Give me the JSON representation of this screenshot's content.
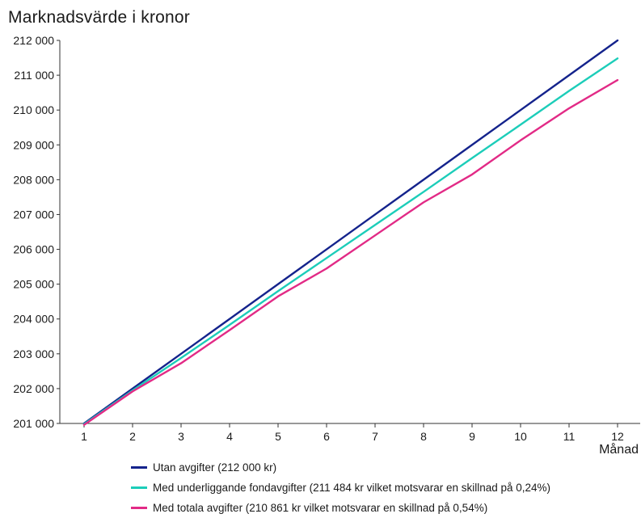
{
  "chart_data": {
    "type": "line",
    "title": "Marknadsvärde i kronor",
    "xlabel": "Månad",
    "ylabel": "",
    "x": [
      1,
      2,
      3,
      4,
      5,
      6,
      7,
      8,
      9,
      10,
      11,
      12
    ],
    "x_tick_labels": [
      "1",
      "2",
      "3",
      "4",
      "5",
      "6",
      "7",
      "8",
      "9",
      "10",
      "11",
      "12"
    ],
    "ylim": [
      201000,
      212000
    ],
    "y_ticks": [
      201000,
      202000,
      203000,
      204000,
      205000,
      206000,
      207000,
      208000,
      209000,
      210000,
      211000,
      212000
    ],
    "y_tick_labels": [
      "201 000",
      "202 000",
      "203 000",
      "204 000",
      "205 000",
      "206 000",
      "207 000",
      "208 000",
      "209 000",
      "210 000",
      "211 000",
      "212 000"
    ],
    "grid": false,
    "legend_position": "bottom",
    "series": [
      {
        "name": "Utan avgifter (212 000 kr)",
        "color": "#14238c",
        "values": [
          201000,
          202000,
          203000,
          204000,
          205000,
          206000,
          207000,
          208000,
          209000,
          210000,
          211000,
          212000
        ]
      },
      {
        "name": "Med underliggande fondavgifter (211 484 kr vilket motsvarar en skillnad på 0,24%)",
        "color": "#1ccdb9",
        "values": [
          200980,
          201950,
          202880,
          203830,
          204800,
          205750,
          206700,
          207650,
          208620,
          209580,
          210550,
          211484
        ]
      },
      {
        "name": "Med totala avgifter (210 861 kr vilket motsvarar en skillnad på 0,54%)",
        "color": "#e22a86",
        "values": [
          200960,
          201920,
          202730,
          203680,
          204650,
          205450,
          206400,
          207350,
          208150,
          209130,
          210050,
          210861
        ]
      }
    ]
  }
}
